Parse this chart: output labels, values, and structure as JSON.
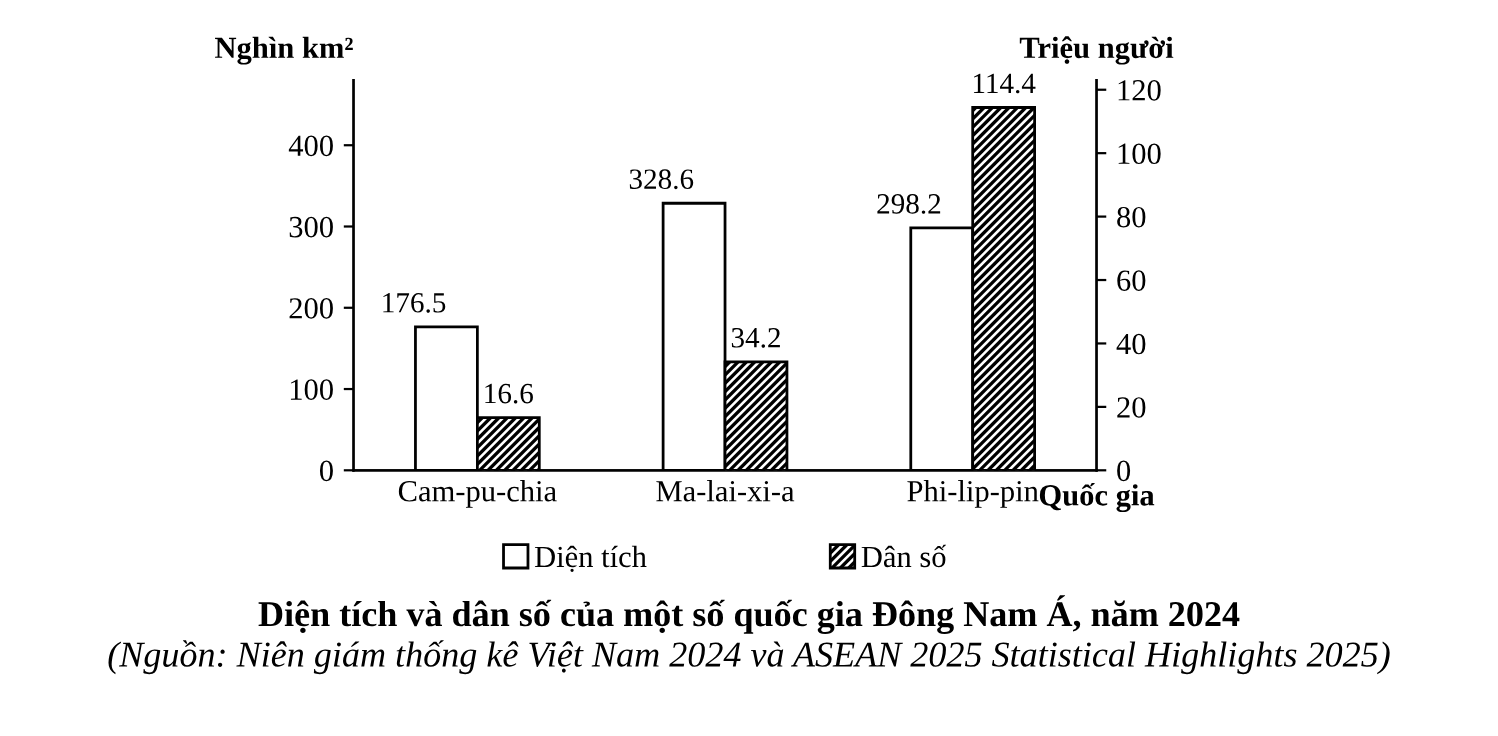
{
  "chart_data": {
    "type": "bar",
    "title": "Diện tích và dân số của một số quốc gia Đông Nam Á, năm 2024",
    "annotations": [
      "(Nguồn: Niên giám thống kê Việt Nam 2024 và ASEAN 2025 Statistical Highlights 2025)"
    ],
    "xlabel": "Quốc gia",
    "ylabel": "Nghìn km²",
    "y2label": "Triệu người",
    "categories": [
      "Cam-pu-chia",
      "Ma-lai-xi-a",
      "Phi-lip-pin"
    ],
    "series": [
      {
        "name": "Diện tích",
        "color": "#ffffff",
        "values": [
          176.5,
          328.6,
          298.2
        ]
      },
      {
        "name": "Dân số",
        "color": "#000000",
        "axis": "y2",
        "values": [
          16.6,
          34.2,
          114.4
        ]
      }
    ],
    "ylim": [
      0,
      480
    ],
    "yticks": [
      0,
      100,
      200,
      300,
      400
    ],
    "y2lim": [
      0,
      123
    ],
    "y2ticks": [
      0,
      20,
      40,
      60,
      80,
      100,
      120
    ],
    "data_labels": true,
    "grid": false,
    "legend": "bottom"
  }
}
